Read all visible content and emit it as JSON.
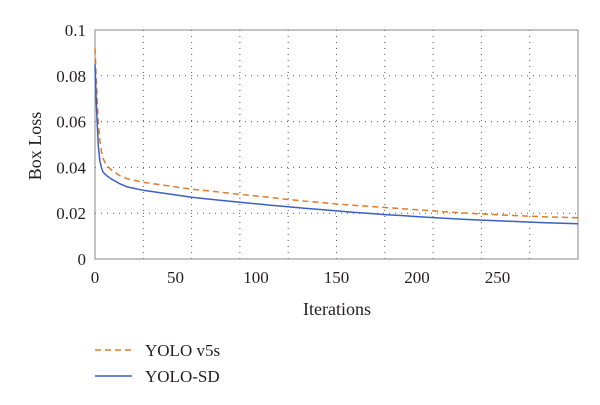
{
  "chart_data": {
    "type": "line",
    "title": "",
    "xlabel": "Iterations",
    "ylabel": "Box Loss",
    "xlim": [
      0,
      300
    ],
    "ylim": [
      0,
      0.1
    ],
    "x_ticks": [
      0,
      50,
      100,
      150,
      200,
      250
    ],
    "y_ticks": [
      0,
      0.02,
      0.04,
      0.06,
      0.08,
      0.1
    ],
    "x_tick_labels": [
      "0",
      "50",
      "100",
      "150",
      "200",
      "250"
    ],
    "y_tick_labels": [
      "0",
      "0.02",
      "0.04",
      "0.06",
      "0.08",
      "0.1"
    ],
    "grid": "dotted",
    "legend_position": "bottom-left",
    "x": [
      0,
      1,
      2,
      3,
      4,
      5,
      7,
      10,
      15,
      20,
      30,
      40,
      50,
      60,
      70,
      80,
      90,
      100,
      110,
      120,
      130,
      140,
      150,
      160,
      170,
      180,
      190,
      200,
      210,
      220,
      230,
      240,
      250,
      260,
      270,
      280,
      290,
      300
    ],
    "series": [
      {
        "name": "YOLO v5s",
        "style": "dashed",
        "color": "#e07b2a",
        "values": [
          0.092,
          0.075,
          0.06,
          0.052,
          0.047,
          0.044,
          0.041,
          0.039,
          0.0365,
          0.035,
          0.0335,
          0.0325,
          0.0315,
          0.0305,
          0.0298,
          0.029,
          0.0282,
          0.0275,
          0.0268,
          0.026,
          0.0253,
          0.0247,
          0.024,
          0.0235,
          0.023,
          0.0225,
          0.022,
          0.0215,
          0.021,
          0.0205,
          0.0201,
          0.0197,
          0.0193,
          0.019,
          0.0187,
          0.0184,
          0.0182,
          0.018
        ]
      },
      {
        "name": "YOLO-SD",
        "style": "solid",
        "color": "#3b5fc4",
        "values": [
          0.085,
          0.065,
          0.05,
          0.043,
          0.04,
          0.038,
          0.0365,
          0.035,
          0.033,
          0.0315,
          0.03,
          0.029,
          0.028,
          0.027,
          0.0262,
          0.0255,
          0.0248,
          0.0241,
          0.0234,
          0.0228,
          0.0222,
          0.0216,
          0.021,
          0.0204,
          0.0199,
          0.0194,
          0.019,
          0.0185,
          0.0181,
          0.0177,
          0.0173,
          0.017,
          0.0167,
          0.0164,
          0.0161,
          0.0158,
          0.0156,
          0.0154
        ]
      }
    ]
  }
}
